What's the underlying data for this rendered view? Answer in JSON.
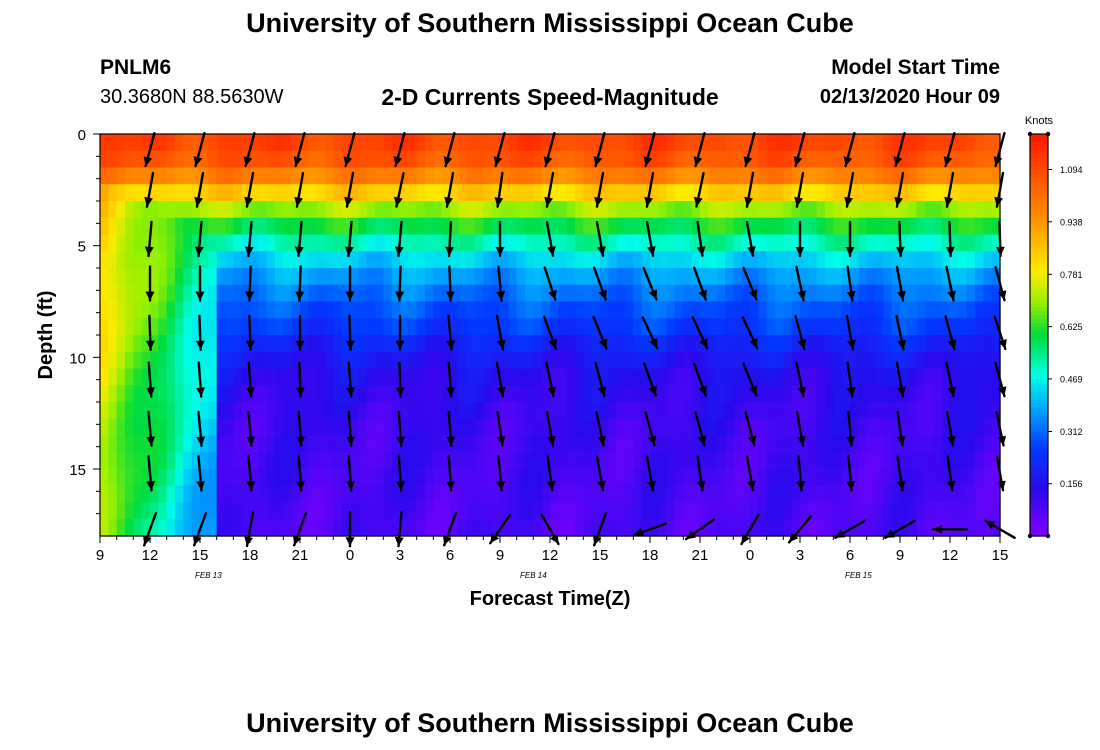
{
  "header": {
    "title": "University of Southern Mississippi Ocean Cube",
    "station_id": "PNLM6",
    "station_coords": "30.3680N 88.5630W",
    "plot_title": "2-D Currents Speed-Magnitude",
    "model_start_label": "Model Start Time",
    "model_start_value": "02/13/2020 Hour 09"
  },
  "footer": {
    "title": "University of Southern Mississippi Ocean Cube"
  },
  "chart_data": {
    "type": "heatmap",
    "xlabel": "Forecast Time(Z)",
    "ylabel": "Depth (ft)",
    "x_ticks": [
      "9",
      "12",
      "15",
      "18",
      "21",
      "0",
      "3",
      "6",
      "9",
      "12",
      "15",
      "18",
      "21",
      "0",
      "3",
      "6",
      "9",
      "12",
      "15"
    ],
    "x_range_hours": [
      0,
      54
    ],
    "date_labels": [
      {
        "text": "FEB 13",
        "hour_offset": 6.5
      },
      {
        "text": "FEB 14",
        "hour_offset": 26
      },
      {
        "text": "FEB 15",
        "hour_offset": 45.5
      }
    ],
    "y_ticks": [
      0,
      5,
      10,
      15
    ],
    "ylim": [
      0,
      18
    ],
    "colorbar": {
      "title": "Knots",
      "ticks": [
        "1.094",
        "0.938",
        "0.781",
        "0.625",
        "0.469",
        "0.312",
        "0.156"
      ],
      "range": [
        0.0,
        1.2
      ]
    },
    "speed_profile_by_depth_ft": [
      {
        "depth": 0,
        "speed": 1.12
      },
      {
        "depth": 1.5,
        "speed": 1.05
      },
      {
        "depth": 2.5,
        "speed": 0.86
      },
      {
        "depth": 3.5,
        "speed": 0.68
      },
      {
        "depth": 4.5,
        "speed": 0.55
      },
      {
        "depth": 5.5,
        "speed": 0.44
      },
      {
        "depth": 6.5,
        "speed": 0.36
      },
      {
        "depth": 7.5,
        "speed": 0.3
      },
      {
        "depth": 8.5,
        "speed": 0.26
      },
      {
        "depth": 9.5,
        "speed": 0.2
      },
      {
        "depth": 11,
        "speed": 0.14
      },
      {
        "depth": 13,
        "speed": 0.11
      },
      {
        "depth": 15,
        "speed": 0.1
      },
      {
        "depth": 16.5,
        "speed": 0.09
      },
      {
        "depth": 18,
        "speed": 0.08
      }
    ],
    "vector_columns_hours": [
      3,
      6,
      9,
      12,
      15,
      18,
      21,
      24,
      27,
      30,
      33,
      36,
      39,
      42,
      45,
      48,
      51,
      54
    ],
    "vector_rows_depth_ft": [
      0.7,
      2.5,
      4.7,
      6.7,
      8.9,
      11,
      13.2,
      15.2,
      17.7
    ],
    "current_direction_profile_deg": [
      [
        195,
        190,
        185,
        180,
        178,
        176,
        175,
        175,
        200
      ],
      [
        195,
        190,
        185,
        180,
        178,
        176,
        175,
        175,
        200
      ],
      [
        195,
        190,
        185,
        182,
        178,
        176,
        175,
        175,
        190
      ],
      [
        195,
        190,
        185,
        182,
        180,
        178,
        176,
        176,
        200
      ],
      [
        195,
        190,
        185,
        180,
        178,
        176,
        176,
        176,
        180
      ],
      [
        195,
        192,
        185,
        182,
        180,
        178,
        176,
        176,
        185
      ],
      [
        195,
        190,
        183,
        178,
        175,
        176,
        176,
        176,
        200
      ],
      [
        195,
        188,
        180,
        175,
        170,
        170,
        172,
        175,
        215
      ],
      [
        195,
        190,
        170,
        162,
        160,
        168,
        170,
        172,
        150
      ],
      [
        195,
        190,
        170,
        160,
        158,
        165,
        168,
        170,
        200
      ],
      [
        195,
        190,
        170,
        158,
        155,
        160,
        165,
        170,
        250
      ],
      [
        195,
        192,
        172,
        160,
        155,
        160,
        165,
        172,
        235
      ],
      [
        195,
        190,
        170,
        158,
        155,
        158,
        165,
        170,
        210
      ],
      [
        195,
        190,
        180,
        168,
        165,
        168,
        170,
        175,
        220
      ],
      [
        195,
        190,
        180,
        172,
        170,
        172,
        175,
        175,
        240
      ],
      [
        195,
        190,
        178,
        170,
        168,
        170,
        172,
        172,
        240
      ],
      [
        195,
        190,
        178,
        168,
        165,
        168,
        170,
        172,
        270
      ],
      [
        195,
        190,
        178,
        165,
        162,
        165,
        168,
        170,
        300
      ]
    ]
  }
}
